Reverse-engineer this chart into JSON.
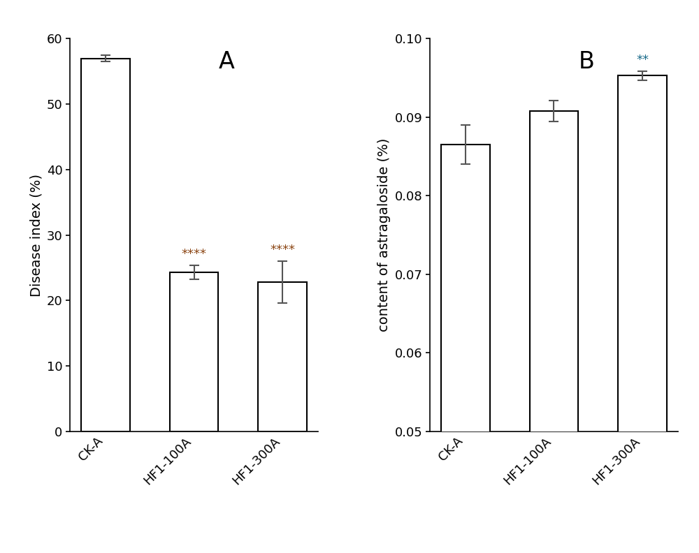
{
  "panel_A": {
    "categories": [
      "CK-A",
      "HF1-100A",
      "HF1-300A"
    ],
    "values": [
      57.0,
      24.3,
      22.8
    ],
    "errors": [
      0.5,
      1.1,
      3.2
    ],
    "ylabel": "Disease index (%)",
    "ylim": [
      0,
      60
    ],
    "yticks": [
      0,
      10,
      20,
      30,
      40,
      50,
      60
    ],
    "label": "A",
    "significance": [
      "",
      "****",
      "****"
    ],
    "sig_color": "#8B4513"
  },
  "panel_B": {
    "categories": [
      "CK-A",
      "HF1-100A",
      "HF1-300A"
    ],
    "values": [
      0.0865,
      0.0908,
      0.0953
    ],
    "errors": [
      0.0025,
      0.0013,
      0.0006
    ],
    "ylabel": "content of astragaloside (%)",
    "ylim": [
      0.05,
      0.1
    ],
    "yticks": [
      0.05,
      0.06,
      0.07,
      0.08,
      0.09,
      0.1
    ],
    "label": "B",
    "significance": [
      "",
      "",
      "**"
    ],
    "sig_color": "#1a6b8a"
  },
  "bar_facecolor": "#ffffff",
  "bar_edgecolor": "#000000",
  "bar_linewidth": 1.5,
  "bar_width": 0.55,
  "background_color": "#ffffff",
  "tick_fontsize": 13,
  "label_fontsize": 14,
  "panel_label_fontsize": 24,
  "sig_fontsize": 13,
  "ecolor_A": "#555555",
  "ecolor_B": "#555555"
}
